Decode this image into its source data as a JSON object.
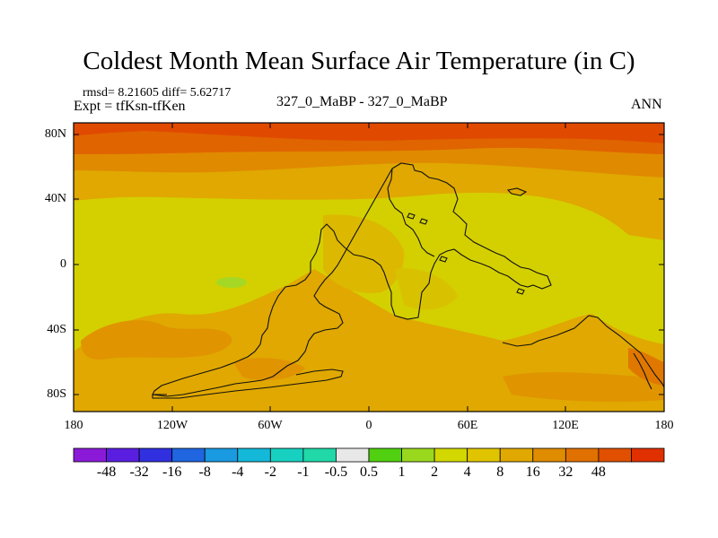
{
  "title": "Coldest Month Mean Surface Air Temperature (in C)",
  "stats": "rmsd= 8.21605 diff= 5.62717",
  "expt": "Expt = tfKsn-tfKen",
  "center_label": "327_0_MaBP - 327_0_MaBP",
  "season": "ANN",
  "y_ticks": [
    "80N",
    "40N",
    "0",
    "40S",
    "80S"
  ],
  "x_ticks": [
    "180",
    "120W",
    "60W",
    "0",
    "60E",
    "120E",
    "180"
  ],
  "colorbar": {
    "colors": [
      "#8a1ad8",
      "#5a1ee0",
      "#3030e0",
      "#1f66e0",
      "#1a9ae0",
      "#14b8d8",
      "#18d0c0",
      "#20d8a8",
      "#e8e8e8",
      "#50d010",
      "#9ad81e",
      "#d2d800",
      "#e0c400",
      "#e0a800",
      "#e08c00",
      "#e07000",
      "#e05000",
      "#e03000"
    ],
    "labels": [
      "-48",
      "-32",
      "-16",
      "-8",
      "-4",
      "-2",
      "-1",
      "-0.5",
      "0.5",
      "1",
      "2",
      "4",
      "8",
      "16",
      "32",
      "48"
    ]
  },
  "map_colors": {
    "band_80n": "#e04a00",
    "band_70n": "#e06400",
    "band_60n": "#e08a00",
    "band_50n": "#e0a800",
    "tropics": "#d4d000",
    "south": "#e0a800",
    "south_dark": "#e09400",
    "green_patch": "#a4d824"
  }
}
